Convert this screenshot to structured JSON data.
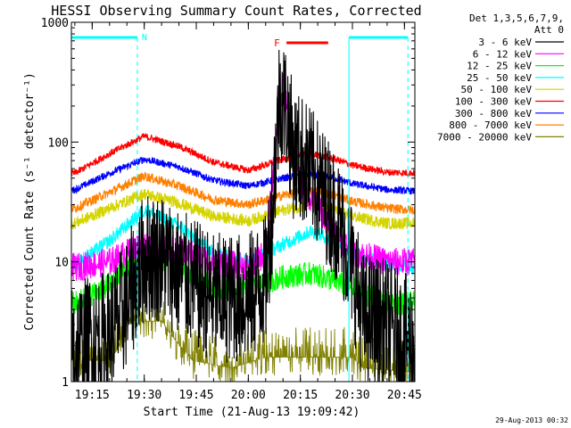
{
  "chart_data": {
    "type": "line",
    "title": "HESSI Observing Summary Count Rates, Corrected",
    "xlabel": "Start Time (21-Aug-13 19:09:42)",
    "ylabel": "Corrected Count Rate (s⁻¹ detector⁻¹)",
    "yscale": "log",
    "ylim": [
      1,
      1000
    ],
    "xlim_minutes": [
      19.15,
      20.8
    ],
    "xlim": [
      "19:09",
      "20:48"
    ],
    "x_tick_labels": [
      "19:15",
      "19:30",
      "19:45",
      "20:00",
      "20:15",
      "20:30",
      "20:45"
    ],
    "y_tick_labels": [
      "1",
      "10",
      "100",
      "1000"
    ],
    "legend_header": [
      "Det 1,3,5,6,7,9,",
      "Att 0"
    ],
    "annotations": [
      {
        "text": "N",
        "color": "#00ffff"
      },
      {
        "text": "F",
        "color": "#ff0000"
      }
    ],
    "series": [
      {
        "name": "3 - 6 keV",
        "color": "#000000",
        "x": [
          "19:10",
          "19:20",
          "19:25",
          "19:30",
          "19:35",
          "19:40",
          "19:50",
          "20:00",
          "20:05",
          "20:07",
          "20:09",
          "20:11",
          "20:13",
          "20:16",
          "20:20",
          "20:25",
          "20:29",
          "20:33",
          "20:40",
          "20:48"
        ],
        "y": [
          2,
          2.5,
          4.5,
          11,
          11,
          8,
          5,
          5,
          7,
          30,
          250,
          190,
          80,
          70,
          45,
          25,
          12,
          3.5,
          3,
          2
        ]
      },
      {
        "name": "6 - 12 keV",
        "color": "#ff00ff",
        "x": [
          "19:10",
          "19:20",
          "19:30",
          "19:35",
          "19:42",
          "19:50",
          "20:00",
          "20:05",
          "20:08",
          "20:10",
          "20:12",
          "20:15",
          "20:20",
          "20:25",
          "20:30",
          "20:40",
          "20:48"
        ],
        "y": [
          9,
          10,
          14,
          13,
          12,
          10,
          9,
          12,
          100,
          320,
          120,
          45,
          28,
          18,
          12,
          10,
          10
        ]
      },
      {
        "name": "12 - 25 keV",
        "color": "#00ff00",
        "x": [
          "19:10",
          "19:20",
          "19:30",
          "19:40",
          "19:50",
          "20:00",
          "20:10",
          "20:18",
          "20:25",
          "20:30",
          "20:40",
          "20:48"
        ],
        "y": [
          4.5,
          6.5,
          12,
          9,
          6,
          6,
          7.5,
          8,
          7,
          6,
          4.5,
          4.5
        ]
      },
      {
        "name": "25 - 50 keV",
        "color": "#00ffff",
        "x": [
          "19:10",
          "19:20",
          "19:30",
          "19:40",
          "19:50",
          "20:00",
          "20:10",
          "20:18",
          "20:25",
          "20:30",
          "20:40",
          "20:48"
        ],
        "y": [
          9.5,
          15,
          27,
          20,
          12,
          10,
          14,
          18,
          15,
          12,
          9.5,
          9
        ]
      },
      {
        "name": "50 - 100 keV",
        "color": "#d4d400",
        "x": [
          "19:10",
          "19:20",
          "19:30",
          "19:40",
          "19:50",
          "20:00",
          "20:10",
          "20:18",
          "20:25",
          "20:30",
          "20:40",
          "20:48"
        ],
        "y": [
          21,
          28,
          37,
          31,
          24,
          22,
          27,
          30,
          27,
          24,
          21,
          21
        ]
      },
      {
        "name": "100 - 300 keV",
        "color": "#ff0000",
        "x": [
          "19:10",
          "19:20",
          "19:30",
          "19:40",
          "19:50",
          "20:00",
          "20:10",
          "20:18",
          "20:25",
          "20:30",
          "20:40",
          "20:48"
        ],
        "y": [
          55,
          80,
          112,
          92,
          68,
          58,
          72,
          80,
          72,
          64,
          56,
          55
        ]
      },
      {
        "name": "300 - 800 keV",
        "color": "#0000ff",
        "x": [
          "19:10",
          "19:20",
          "19:30",
          "19:40",
          "19:50",
          "20:00",
          "20:10",
          "20:18",
          "20:25",
          "20:30",
          "20:40",
          "20:48"
        ],
        "y": [
          40,
          55,
          72,
          62,
          48,
          43,
          50,
          54,
          50,
          45,
          40,
          39
        ]
      },
      {
        "name": "800 - 7000 keV",
        "color": "#ff8000",
        "x": [
          "19:10",
          "19:20",
          "19:30",
          "19:40",
          "19:50",
          "20:00",
          "20:10",
          "20:18",
          "20:25",
          "20:30",
          "20:40",
          "20:48"
        ],
        "y": [
          28,
          38,
          52,
          43,
          33,
          30,
          36,
          40,
          36,
          32,
          28,
          27
        ]
      },
      {
        "name": "7000 - 20000 keV",
        "color": "#808000",
        "x": [
          "19:10",
          "19:20",
          "19:24",
          "19:25",
          "19:35",
          "19:38",
          "19:44",
          "19:55",
          "20:05",
          "20:30",
          "20:33",
          "20:48"
        ],
        "y": [
          1.5,
          1.5,
          2.2,
          3.2,
          3.2,
          2.4,
          1.5,
          1.3,
          1.6,
          1.6,
          1.3,
          1.2
        ]
      }
    ],
    "cyan_bars": [
      {
        "label": "N",
        "from": "19:09",
        "to": "19:28"
      },
      {
        "label": "",
        "from": "20:29",
        "to": "20:46"
      }
    ],
    "cyan_dashed_lines": [
      "19:28",
      "20:46"
    ],
    "cyan_solid_lines": [
      "20:29"
    ],
    "red_bar": {
      "label": "F",
      "from": "20:11",
      "to": "20:23"
    }
  },
  "footer": {
    "timestamp": "29-Aug-2013 00:32"
  }
}
